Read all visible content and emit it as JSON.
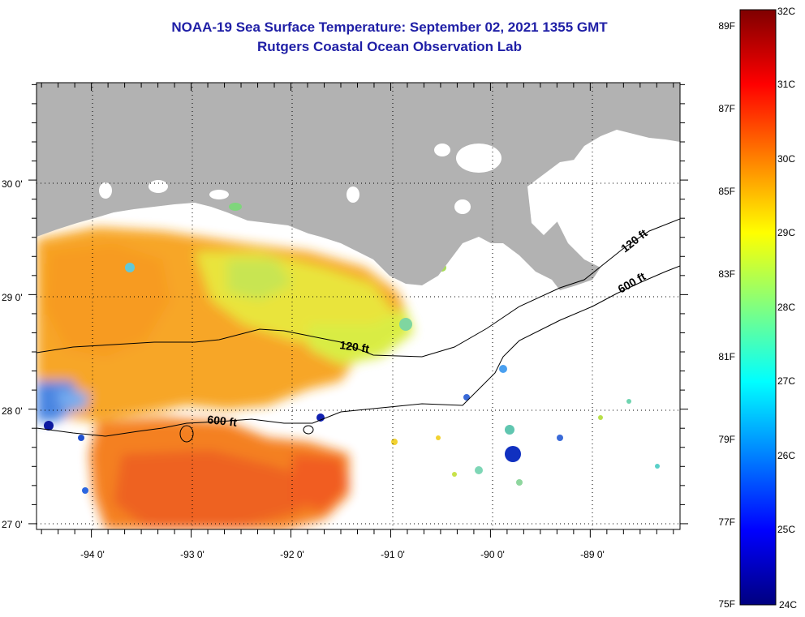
{
  "title": {
    "line1": "NOAA-19 Sea Surface Temperature:  September 02, 2021 1355 GMT",
    "line2": "Rutgers Coastal Ocean Observation Lab"
  },
  "map": {
    "lon_range": [
      -94.55,
      -88.1
    ],
    "lat_range": [
      26.95,
      30.85
    ],
    "lat_labels": [
      {
        "value": 30.0,
        "text": "30 0'"
      },
      {
        "value": 29.0,
        "text": "29 0'"
      },
      {
        "value": 28.0,
        "text": "28 0'"
      },
      {
        "value": 27.0,
        "text": "27 0'"
      }
    ],
    "lon_labels": [
      {
        "value": -94.0,
        "text": "-94 0'"
      },
      {
        "value": -93.0,
        "text": "-93 0'"
      },
      {
        "value": -92.0,
        "text": "-92 0'"
      },
      {
        "value": -91.0,
        "text": "-91 0'"
      },
      {
        "value": -90.0,
        "text": "-90 0'"
      },
      {
        "value": -89.0,
        "text": "-89 0'"
      }
    ],
    "grid": true,
    "grid_style": "dotted",
    "colors": {
      "land": "#b2b2b2",
      "ocean": "#ffffff",
      "frame": "#000000",
      "title": "#1f1fa6"
    },
    "isobaths": [
      {
        "label": "120 ft",
        "depth_ft": 120
      },
      {
        "label": "600 ft",
        "depth_ft": 600
      }
    ]
  },
  "colorbar": {
    "celsius_labels": [
      "32C",
      "31C",
      "30C",
      "29C",
      "28C",
      "27C",
      "26C",
      "25C",
      "24C"
    ],
    "fahrenheit_labels": [
      "89F",
      "87F",
      "85F",
      "83F",
      "81F",
      "79F",
      "77F",
      "75F"
    ],
    "c_min": 24,
    "c_max": 32,
    "f_min": 75,
    "f_max": 89.6,
    "color_stops": [
      "#00007f",
      "#0000ff",
      "#0080ff",
      "#00ffff",
      "#80ff80",
      "#ffff00",
      "#ff8000",
      "#ff0000",
      "#7f0000"
    ]
  }
}
